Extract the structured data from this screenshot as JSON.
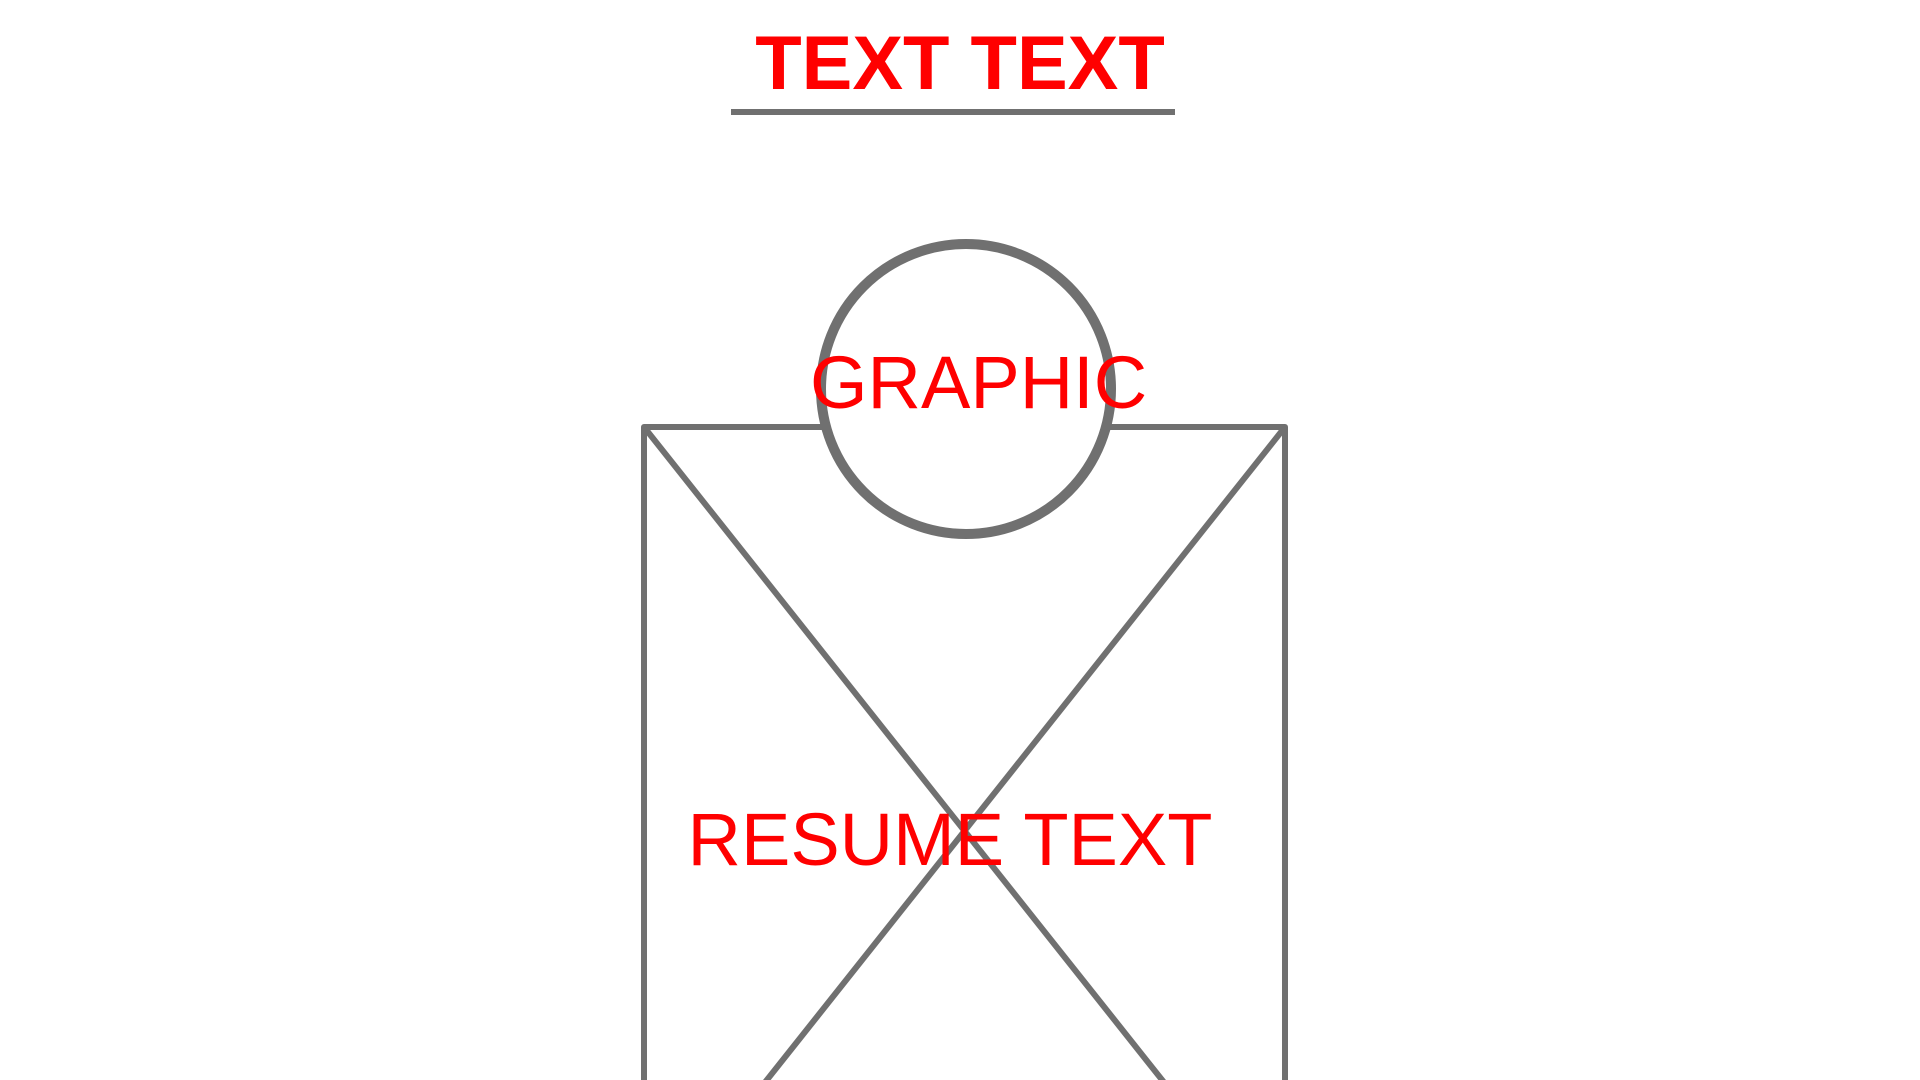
{
  "header": {
    "title": "TEXT TEXT"
  },
  "graphic": {
    "label": "GRAPHIC"
  },
  "body": {
    "label": "RESUME TEXT"
  },
  "colors": {
    "text_accent": "#ff0000",
    "wire_line": "#707070",
    "background": "#ffffff"
  }
}
